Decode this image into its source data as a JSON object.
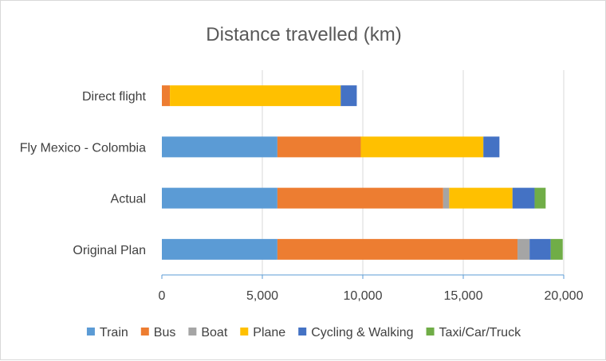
{
  "chart_data": {
    "type": "bar",
    "orientation": "horizontal",
    "stacked": true,
    "title": "Distance travelled (km)",
    "xlabel": "",
    "ylabel": "",
    "categories": [
      "Direct flight",
      "Fly Mexico - Colombia",
      "Actual",
      "Original Plan"
    ],
    "series": [
      {
        "name": "Train",
        "color": "#5b9bd5",
        "values": [
          0,
          5750,
          5750,
          5750
        ]
      },
      {
        "name": "Bus",
        "color": "#ed7d31",
        "values": [
          400,
          4150,
          8250,
          11950
        ]
      },
      {
        "name": "Boat",
        "color": "#a5a5a5",
        "values": [
          0,
          0,
          300,
          600
        ]
      },
      {
        "name": "Plane",
        "color": "#ffc000",
        "values": [
          8500,
          6100,
          3150,
          0
        ]
      },
      {
        "name": "Cycling & Walking",
        "color": "#4472c4",
        "values": [
          800,
          800,
          1100,
          1050
        ]
      },
      {
        "name": "Taxi/Car/Truck",
        "color": "#70ad47",
        "values": [
          0,
          0,
          550,
          600
        ]
      }
    ],
    "xlim": [
      0,
      20000
    ],
    "xticks": [
      0,
      5000,
      10000,
      15000,
      20000
    ],
    "xtick_labels": [
      "0",
      "5,000",
      "10,000",
      "15,000",
      "20,000"
    ],
    "grid": "vertical",
    "legend_position": "bottom"
  }
}
